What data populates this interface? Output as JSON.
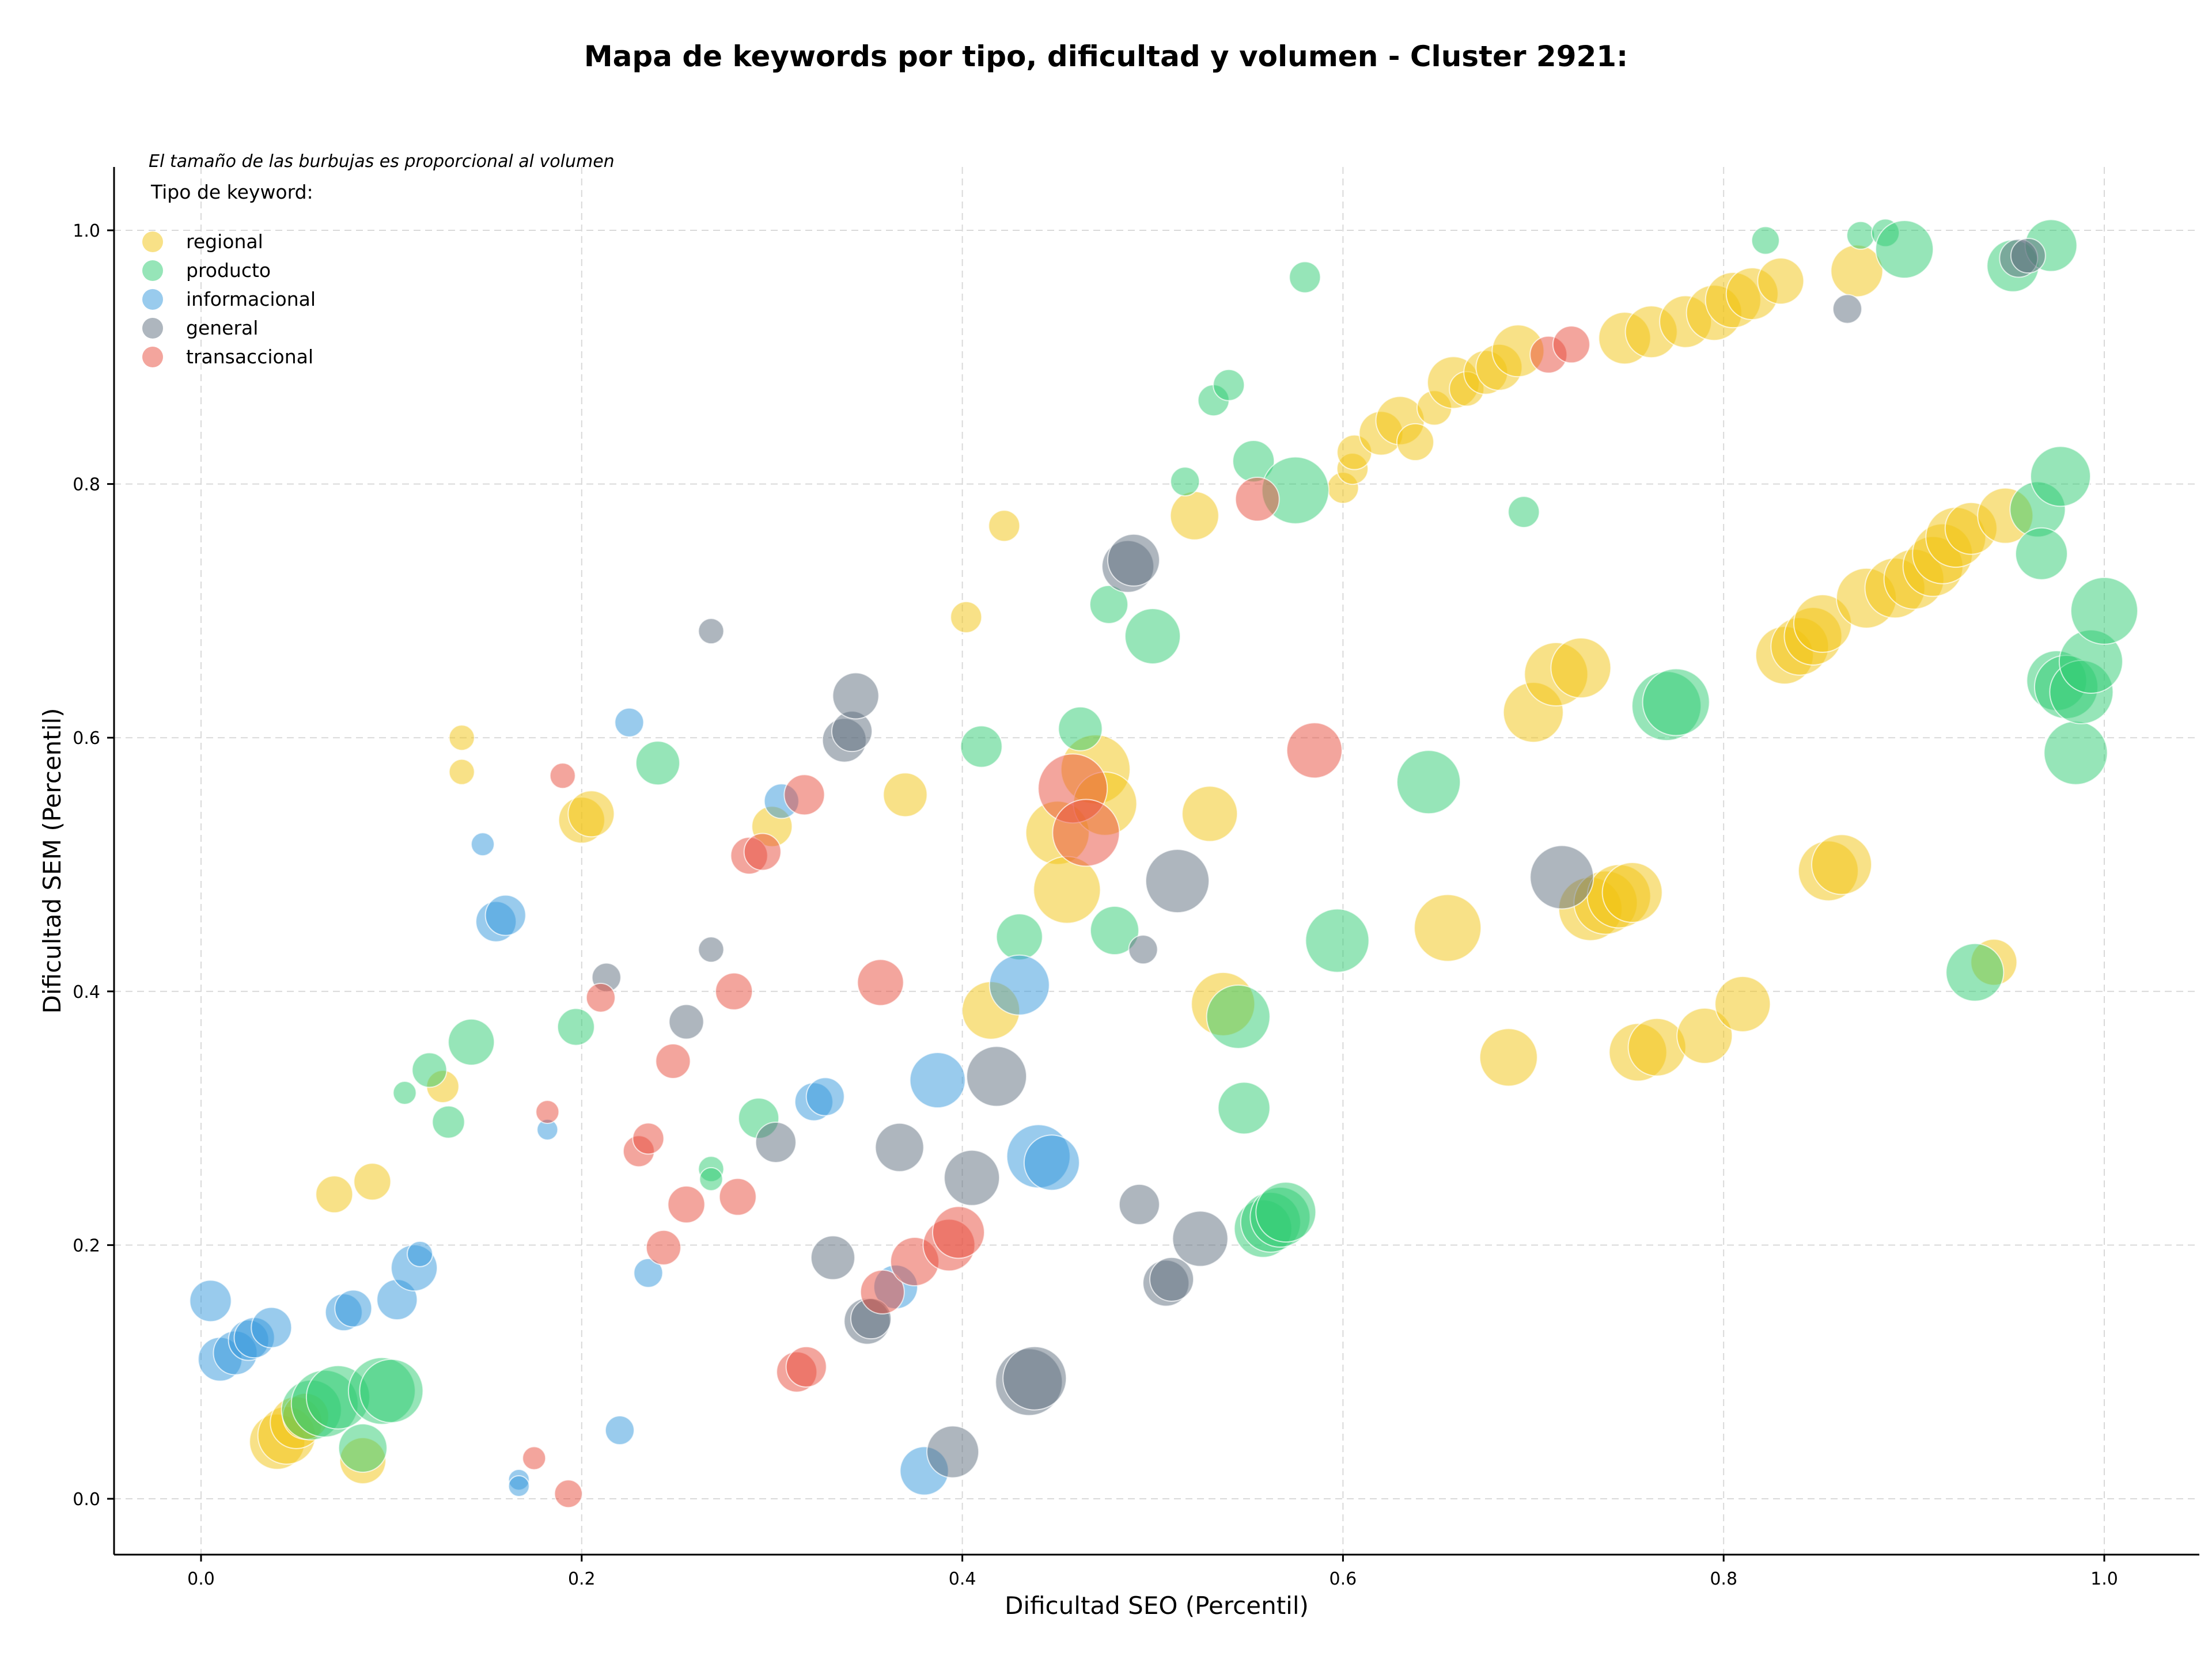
{
  "chart_data": {
    "type": "scatter",
    "title": "Mapa de keywords por tipo, dificultad y volumen - Cluster 2921:",
    "xlabel": "Dificultad SEO (Percentil)",
    "ylabel": "Dificultad SEM (Percentil)",
    "xlim": [
      -0.045,
      1.05
    ],
    "ylim": [
      -0.045,
      1.05
    ],
    "xticks": [
      "0.0",
      "0.2",
      "0.4",
      "0.6",
      "0.8",
      "1.0"
    ],
    "yticks": [
      "0.0",
      "0.2",
      "0.4",
      "0.6",
      "0.8",
      "1.0"
    ],
    "grid": true,
    "size_note": "El tamaño de las burbujas es proporcional al volumen",
    "legend_title": "Tipo de keyword:",
    "legend_position": "top-left",
    "series": [
      {
        "name": "regional",
        "color": "#f1c40f",
        "points": [
          [
            0.04,
            0.045,
            48
          ],
          [
            0.045,
            0.05,
            50
          ],
          [
            0.05,
            0.06,
            45
          ],
          [
            0.055,
            0.065,
            40
          ],
          [
            0.085,
            0.03,
            40
          ],
          [
            0.07,
            0.24,
            32
          ],
          [
            0.09,
            0.25,
            32
          ],
          [
            0.127,
            0.325,
            28
          ],
          [
            0.137,
            0.6,
            22
          ],
          [
            0.137,
            0.573,
            22
          ],
          [
            0.2,
            0.535,
            40
          ],
          [
            0.205,
            0.54,
            40
          ],
          [
            0.3,
            0.53,
            35
          ],
          [
            0.37,
            0.555,
            38
          ],
          [
            0.402,
            0.695,
            27
          ],
          [
            0.422,
            0.767,
            27
          ],
          [
            0.415,
            0.385,
            50
          ],
          [
            0.45,
            0.525,
            55
          ],
          [
            0.455,
            0.48,
            58
          ],
          [
            0.47,
            0.575,
            60
          ],
          [
            0.475,
            0.548,
            55
          ],
          [
            0.522,
            0.775,
            42
          ],
          [
            0.53,
            0.54,
            48
          ],
          [
            0.537,
            0.39,
            55
          ],
          [
            0.6,
            0.797,
            27
          ],
          [
            0.605,
            0.812,
            27
          ],
          [
            0.606,
            0.825,
            30
          ],
          [
            0.62,
            0.84,
            38
          ],
          [
            0.63,
            0.85,
            42
          ],
          [
            0.638,
            0.833,
            32
          ],
          [
            0.648,
            0.86,
            30
          ],
          [
            0.658,
            0.88,
            45
          ],
          [
            0.665,
            0.875,
            30
          ],
          [
            0.675,
            0.888,
            38
          ],
          [
            0.682,
            0.892,
            40
          ],
          [
            0.692,
            0.905,
            45
          ],
          [
            0.655,
            0.45,
            58
          ],
          [
            0.687,
            0.348,
            50
          ],
          [
            0.7,
            0.62,
            52
          ],
          [
            0.712,
            0.65,
            55
          ],
          [
            0.725,
            0.655,
            52
          ],
          [
            0.73,
            0.465,
            55
          ],
          [
            0.738,
            0.47,
            55
          ],
          [
            0.745,
            0.475,
            55
          ],
          [
            0.752,
            0.478,
            52
          ],
          [
            0.748,
            0.915,
            45
          ],
          [
            0.762,
            0.92,
            45
          ],
          [
            0.78,
            0.928,
            45
          ],
          [
            0.795,
            0.935,
            48
          ],
          [
            0.805,
            0.945,
            48
          ],
          [
            0.815,
            0.95,
            45
          ],
          [
            0.83,
            0.96,
            40
          ],
          [
            0.87,
            0.968,
            45
          ],
          [
            0.755,
            0.352,
            50
          ],
          [
            0.765,
            0.356,
            50
          ],
          [
            0.79,
            0.365,
            48
          ],
          [
            0.81,
            0.39,
            48
          ],
          [
            0.832,
            0.665,
            50
          ],
          [
            0.84,
            0.672,
            50
          ],
          [
            0.847,
            0.68,
            50
          ],
          [
            0.852,
            0.69,
            50
          ],
          [
            0.855,
            0.495,
            52
          ],
          [
            0.862,
            0.5,
            52
          ],
          [
            0.875,
            0.71,
            52
          ],
          [
            0.89,
            0.718,
            52
          ],
          [
            0.9,
            0.725,
            52
          ],
          [
            0.91,
            0.735,
            52
          ],
          [
            0.915,
            0.745,
            52
          ],
          [
            0.922,
            0.758,
            52
          ],
          [
            0.93,
            0.765,
            45
          ],
          [
            0.942,
            0.423,
            40
          ],
          [
            0.948,
            0.775,
            48
          ]
        ]
      },
      {
        "name": "producto",
        "color": "#2ecc71",
        "points": [
          [
            0.058,
            0.07,
            52
          ],
          [
            0.065,
            0.075,
            58
          ],
          [
            0.072,
            0.08,
            55
          ],
          [
            0.085,
            0.04,
            42
          ],
          [
            0.095,
            0.085,
            58
          ],
          [
            0.1,
            0.085,
            55
          ],
          [
            0.107,
            0.32,
            20
          ],
          [
            0.12,
            0.338,
            30
          ],
          [
            0.13,
            0.297,
            28
          ],
          [
            0.142,
            0.36,
            40
          ],
          [
            0.197,
            0.372,
            32
          ],
          [
            0.24,
            0.58,
            38
          ],
          [
            0.268,
            0.26,
            22
          ],
          [
            0.268,
            0.252,
            20
          ],
          [
            0.293,
            0.3,
            35
          ],
          [
            0.41,
            0.593,
            36
          ],
          [
            0.43,
            0.443,
            40
          ],
          [
            0.462,
            0.607,
            38
          ],
          [
            0.477,
            0.705,
            33
          ],
          [
            0.48,
            0.448,
            42
          ],
          [
            0.5,
            0.68,
            48
          ],
          [
            0.517,
            0.802,
            25
          ],
          [
            0.532,
            0.866,
            27
          ],
          [
            0.54,
            0.878,
            27
          ],
          [
            0.545,
            0.38,
            55
          ],
          [
            0.548,
            0.308,
            45
          ],
          [
            0.553,
            0.818,
            36
          ],
          [
            0.558,
            0.213,
            50
          ],
          [
            0.562,
            0.218,
            52
          ],
          [
            0.567,
            0.222,
            52
          ],
          [
            0.57,
            0.226,
            52
          ],
          [
            0.575,
            0.795,
            58
          ],
          [
            0.58,
            0.963,
            27
          ],
          [
            0.597,
            0.44,
            55
          ],
          [
            0.645,
            0.565,
            55
          ],
          [
            0.695,
            0.778,
            27
          ],
          [
            0.77,
            0.625,
            60
          ],
          [
            0.775,
            0.628,
            58
          ],
          [
            0.822,
            0.992,
            24
          ],
          [
            0.872,
            0.996,
            24
          ],
          [
            0.885,
            0.998,
            24
          ],
          [
            0.895,
            0.985,
            50
          ],
          [
            0.932,
            0.415,
            50
          ],
          [
            0.952,
            0.972,
            45
          ],
          [
            0.965,
            0.78,
            48
          ],
          [
            0.967,
            0.745,
            45
          ],
          [
            0.975,
            0.645,
            52
          ],
          [
            0.98,
            0.64,
            55
          ],
          [
            0.985,
            0.588,
            55
          ],
          [
            0.972,
            0.988,
            45
          ],
          [
            0.977,
            0.806,
            52
          ],
          [
            0.988,
            0.636,
            55
          ],
          [
            0.993,
            0.66,
            55
          ],
          [
            1.0,
            0.7,
            58
          ]
        ]
      },
      {
        "name": "informacional",
        "color": "#3498db",
        "points": [
          [
            0.005,
            0.156,
            36
          ],
          [
            0.01,
            0.11,
            38
          ],
          [
            0.018,
            0.115,
            38
          ],
          [
            0.025,
            0.125,
            35
          ],
          [
            0.028,
            0.127,
            35
          ],
          [
            0.037,
            0.135,
            35
          ],
          [
            0.075,
            0.147,
            32
          ],
          [
            0.08,
            0.15,
            32
          ],
          [
            0.103,
            0.157,
            35
          ],
          [
            0.112,
            0.182,
            40
          ],
          [
            0.115,
            0.193,
            22
          ],
          [
            0.148,
            0.516,
            20
          ],
          [
            0.155,
            0.455,
            35
          ],
          [
            0.16,
            0.46,
            35
          ],
          [
            0.167,
            0.015,
            18
          ],
          [
            0.167,
            0.01,
            18
          ],
          [
            0.182,
            0.291,
            18
          ],
          [
            0.22,
            0.054,
            25
          ],
          [
            0.225,
            0.612,
            25
          ],
          [
            0.235,
            0.178,
            25
          ],
          [
            0.305,
            0.55,
            30
          ],
          [
            0.322,
            0.313,
            33
          ],
          [
            0.328,
            0.317,
            33
          ],
          [
            0.365,
            0.167,
            38
          ],
          [
            0.38,
            0.022,
            42
          ],
          [
            0.387,
            0.33,
            48
          ],
          [
            0.43,
            0.405,
            52
          ],
          [
            0.44,
            0.27,
            55
          ],
          [
            0.447,
            0.265,
            48
          ]
        ]
      },
      {
        "name": "general",
        "color": "#5d6d7e",
        "points": [
          [
            0.213,
            0.411,
            25
          ],
          [
            0.268,
            0.684,
            22
          ],
          [
            0.268,
            0.433,
            22
          ],
          [
            0.255,
            0.376,
            30
          ],
          [
            0.302,
            0.281,
            35
          ],
          [
            0.332,
            0.19,
            38
          ],
          [
            0.338,
            0.598,
            38
          ],
          [
            0.342,
            0.605,
            35
          ],
          [
            0.344,
            0.633,
            40
          ],
          [
            0.35,
            0.14,
            40
          ],
          [
            0.352,
            0.142,
            35
          ],
          [
            0.367,
            0.277,
            42
          ],
          [
            0.395,
            0.037,
            45
          ],
          [
            0.405,
            0.253,
            48
          ],
          [
            0.418,
            0.333,
            52
          ],
          [
            0.435,
            0.092,
            58
          ],
          [
            0.438,
            0.095,
            55
          ],
          [
            0.487,
            0.735,
            45
          ],
          [
            0.49,
            0.74,
            45
          ],
          [
            0.495,
            0.433,
            25
          ],
          [
            0.493,
            0.232,
            35
          ],
          [
            0.507,
            0.17,
            40
          ],
          [
            0.51,
            0.173,
            38
          ],
          [
            0.513,
            0.487,
            55
          ],
          [
            0.525,
            0.205,
            48
          ],
          [
            0.715,
            0.49,
            55
          ],
          [
            0.865,
            0.938,
            25
          ],
          [
            0.955,
            0.978,
            33
          ],
          [
            0.96,
            0.98,
            30
          ]
        ]
      },
      {
        "name": "transaccional",
        "color": "#e74c3c",
        "points": [
          [
            0.175,
            0.032,
            20
          ],
          [
            0.182,
            0.305,
            20
          ],
          [
            0.19,
            0.57,
            22
          ],
          [
            0.193,
            0.004,
            24
          ],
          [
            0.21,
            0.395,
            25
          ],
          [
            0.23,
            0.274,
            27
          ],
          [
            0.235,
            0.284,
            27
          ],
          [
            0.243,
            0.198,
            30
          ],
          [
            0.248,
            0.345,
            30
          ],
          [
            0.255,
            0.232,
            32
          ],
          [
            0.28,
            0.4,
            32
          ],
          [
            0.282,
            0.238,
            32
          ],
          [
            0.288,
            0.507,
            32
          ],
          [
            0.295,
            0.51,
            32
          ],
          [
            0.313,
            0.1,
            35
          ],
          [
            0.317,
            0.555,
            35
          ],
          [
            0.318,
            0.104,
            35
          ],
          [
            0.358,
            0.163,
            38
          ],
          [
            0.357,
            0.407,
            40
          ],
          [
            0.375,
            0.187,
            42
          ],
          [
            0.393,
            0.2,
            45
          ],
          [
            0.398,
            0.21,
            45
          ],
          [
            0.458,
            0.56,
            60
          ],
          [
            0.465,
            0.525,
            58
          ],
          [
            0.555,
            0.788,
            38
          ],
          [
            0.585,
            0.59,
            48
          ],
          [
            0.708,
            0.902,
            32
          ],
          [
            0.72,
            0.91,
            32
          ]
        ]
      }
    ]
  }
}
